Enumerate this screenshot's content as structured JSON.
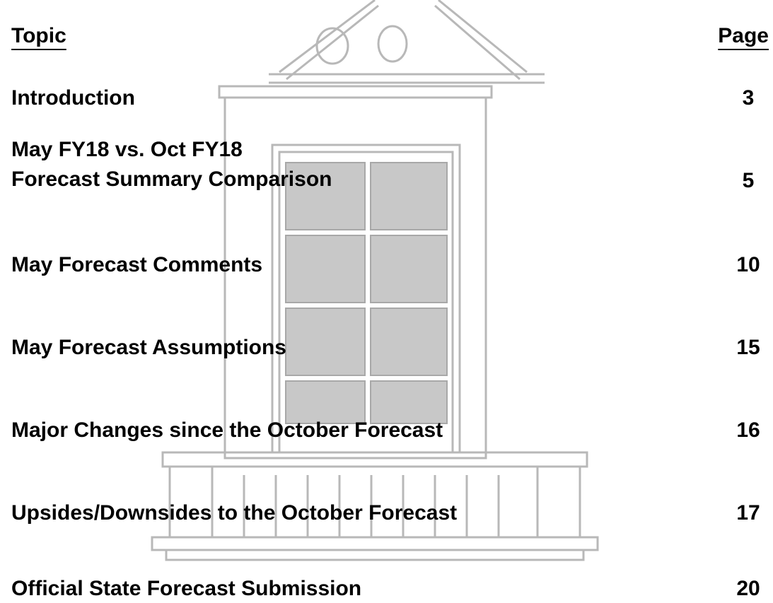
{
  "header": {
    "topic": "Topic",
    "page": "Page"
  },
  "entries": [
    {
      "lines": [
        "Introduction"
      ],
      "page": "3"
    },
    {
      "lines": [
        "May FY18 vs. Oct FY18",
        "Forecast Summary Comparison"
      ],
      "page": "5"
    },
    {
      "lines": [
        "May Forecast Comments"
      ],
      "page": "10"
    },
    {
      "lines": [
        "May Forecast  Assumptions"
      ],
      "page": "15"
    },
    {
      "lines": [
        "Major Changes since the October Forecast"
      ],
      "page": "16"
    },
    {
      "lines": [
        "Upsides/Downsides to the October Forecast"
      ],
      "page": "17"
    },
    {
      "lines": [
        "Official State Forecast Submission"
      ],
      "page": "20"
    }
  ]
}
